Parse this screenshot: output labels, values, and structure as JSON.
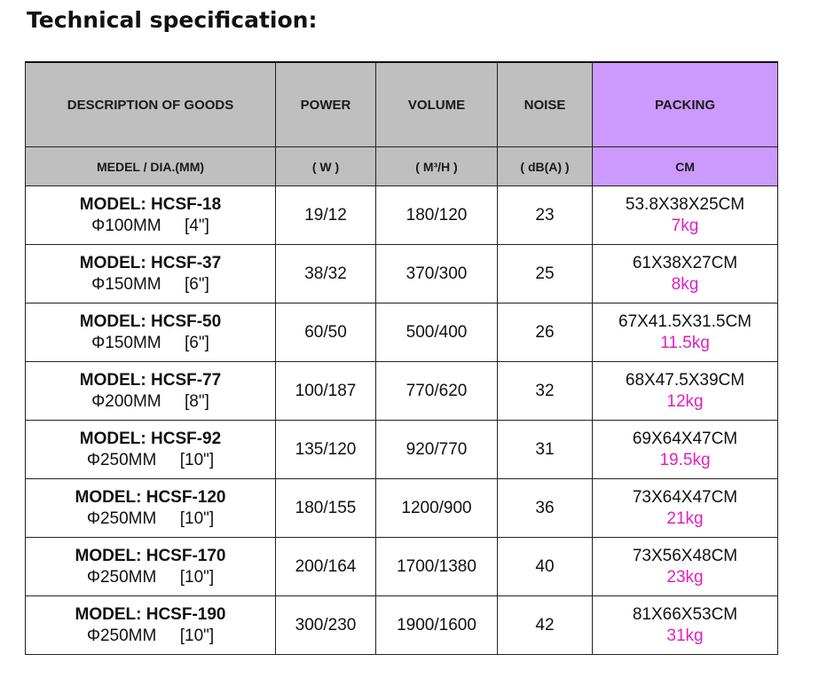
{
  "title": "Technical specification:",
  "colors": {
    "header_gray": "#bfbfbf",
    "packing_purple": "#cc99ff",
    "weight_magenta": "#e020c0"
  },
  "headers": {
    "row1": [
      "DESCRIPTION OF GOODS",
      "POWER",
      "VOLUME",
      "NOISE",
      "PACKING"
    ],
    "row2": [
      "MEDEL / DIA.(MM)",
      "( W )",
      "( M³/H )",
      "( dB(A) )",
      "CM"
    ]
  },
  "rows": [
    {
      "model": "MODEL: HCSF-18",
      "dia": "Φ100MM     [4\"]",
      "power": "19/12",
      "volume": "180/120",
      "noise": "23",
      "size": "53.8X38X25CM",
      "weight": "7kg"
    },
    {
      "model": "MODEL: HCSF-37",
      "dia": "Φ150MM     [6\"]",
      "power": "38/32",
      "volume": "370/300",
      "noise": "25",
      "size": "61X38X27CM",
      "weight": "8kg"
    },
    {
      "model": "MODEL: HCSF-50",
      "dia": "Φ150MM     [6\"]",
      "power": "60/50",
      "volume": "500/400",
      "noise": "26",
      "size": "67X41.5X31.5CM",
      "weight": "11.5kg"
    },
    {
      "model": "MODEL: HCSF-77",
      "dia": "Φ200MM     [8\"]",
      "power": "100/187",
      "volume": "770/620",
      "noise": "32",
      "size": "68X47.5X39CM",
      "weight": "12kg"
    },
    {
      "model": "MODEL: HCSF-92",
      "dia": "Φ250MM     [10\"]",
      "power": "135/120",
      "volume": "920/770",
      "noise": "31",
      "size": "69X64X47CM",
      "weight": "19.5kg"
    },
    {
      "model": "MODEL: HCSF-120",
      "dia": "Φ250MM     [10\"]",
      "power": "180/155",
      "volume": "1200/900",
      "noise": "36",
      "size": "73X64X47CM",
      "weight": "21kg"
    },
    {
      "model": "MODEL: HCSF-170",
      "dia": "Φ250MM     [10\"]",
      "power": "200/164",
      "volume": "1700/1380",
      "noise": "40",
      "size": "73X56X48CM",
      "weight": "23kg"
    },
    {
      "model": "MODEL: HCSF-190",
      "dia": "Φ250MM     [10\"]",
      "power": "300/230",
      "volume": "1900/1600",
      "noise": "42",
      "size": "81X66X53CM",
      "weight": "31kg"
    }
  ]
}
